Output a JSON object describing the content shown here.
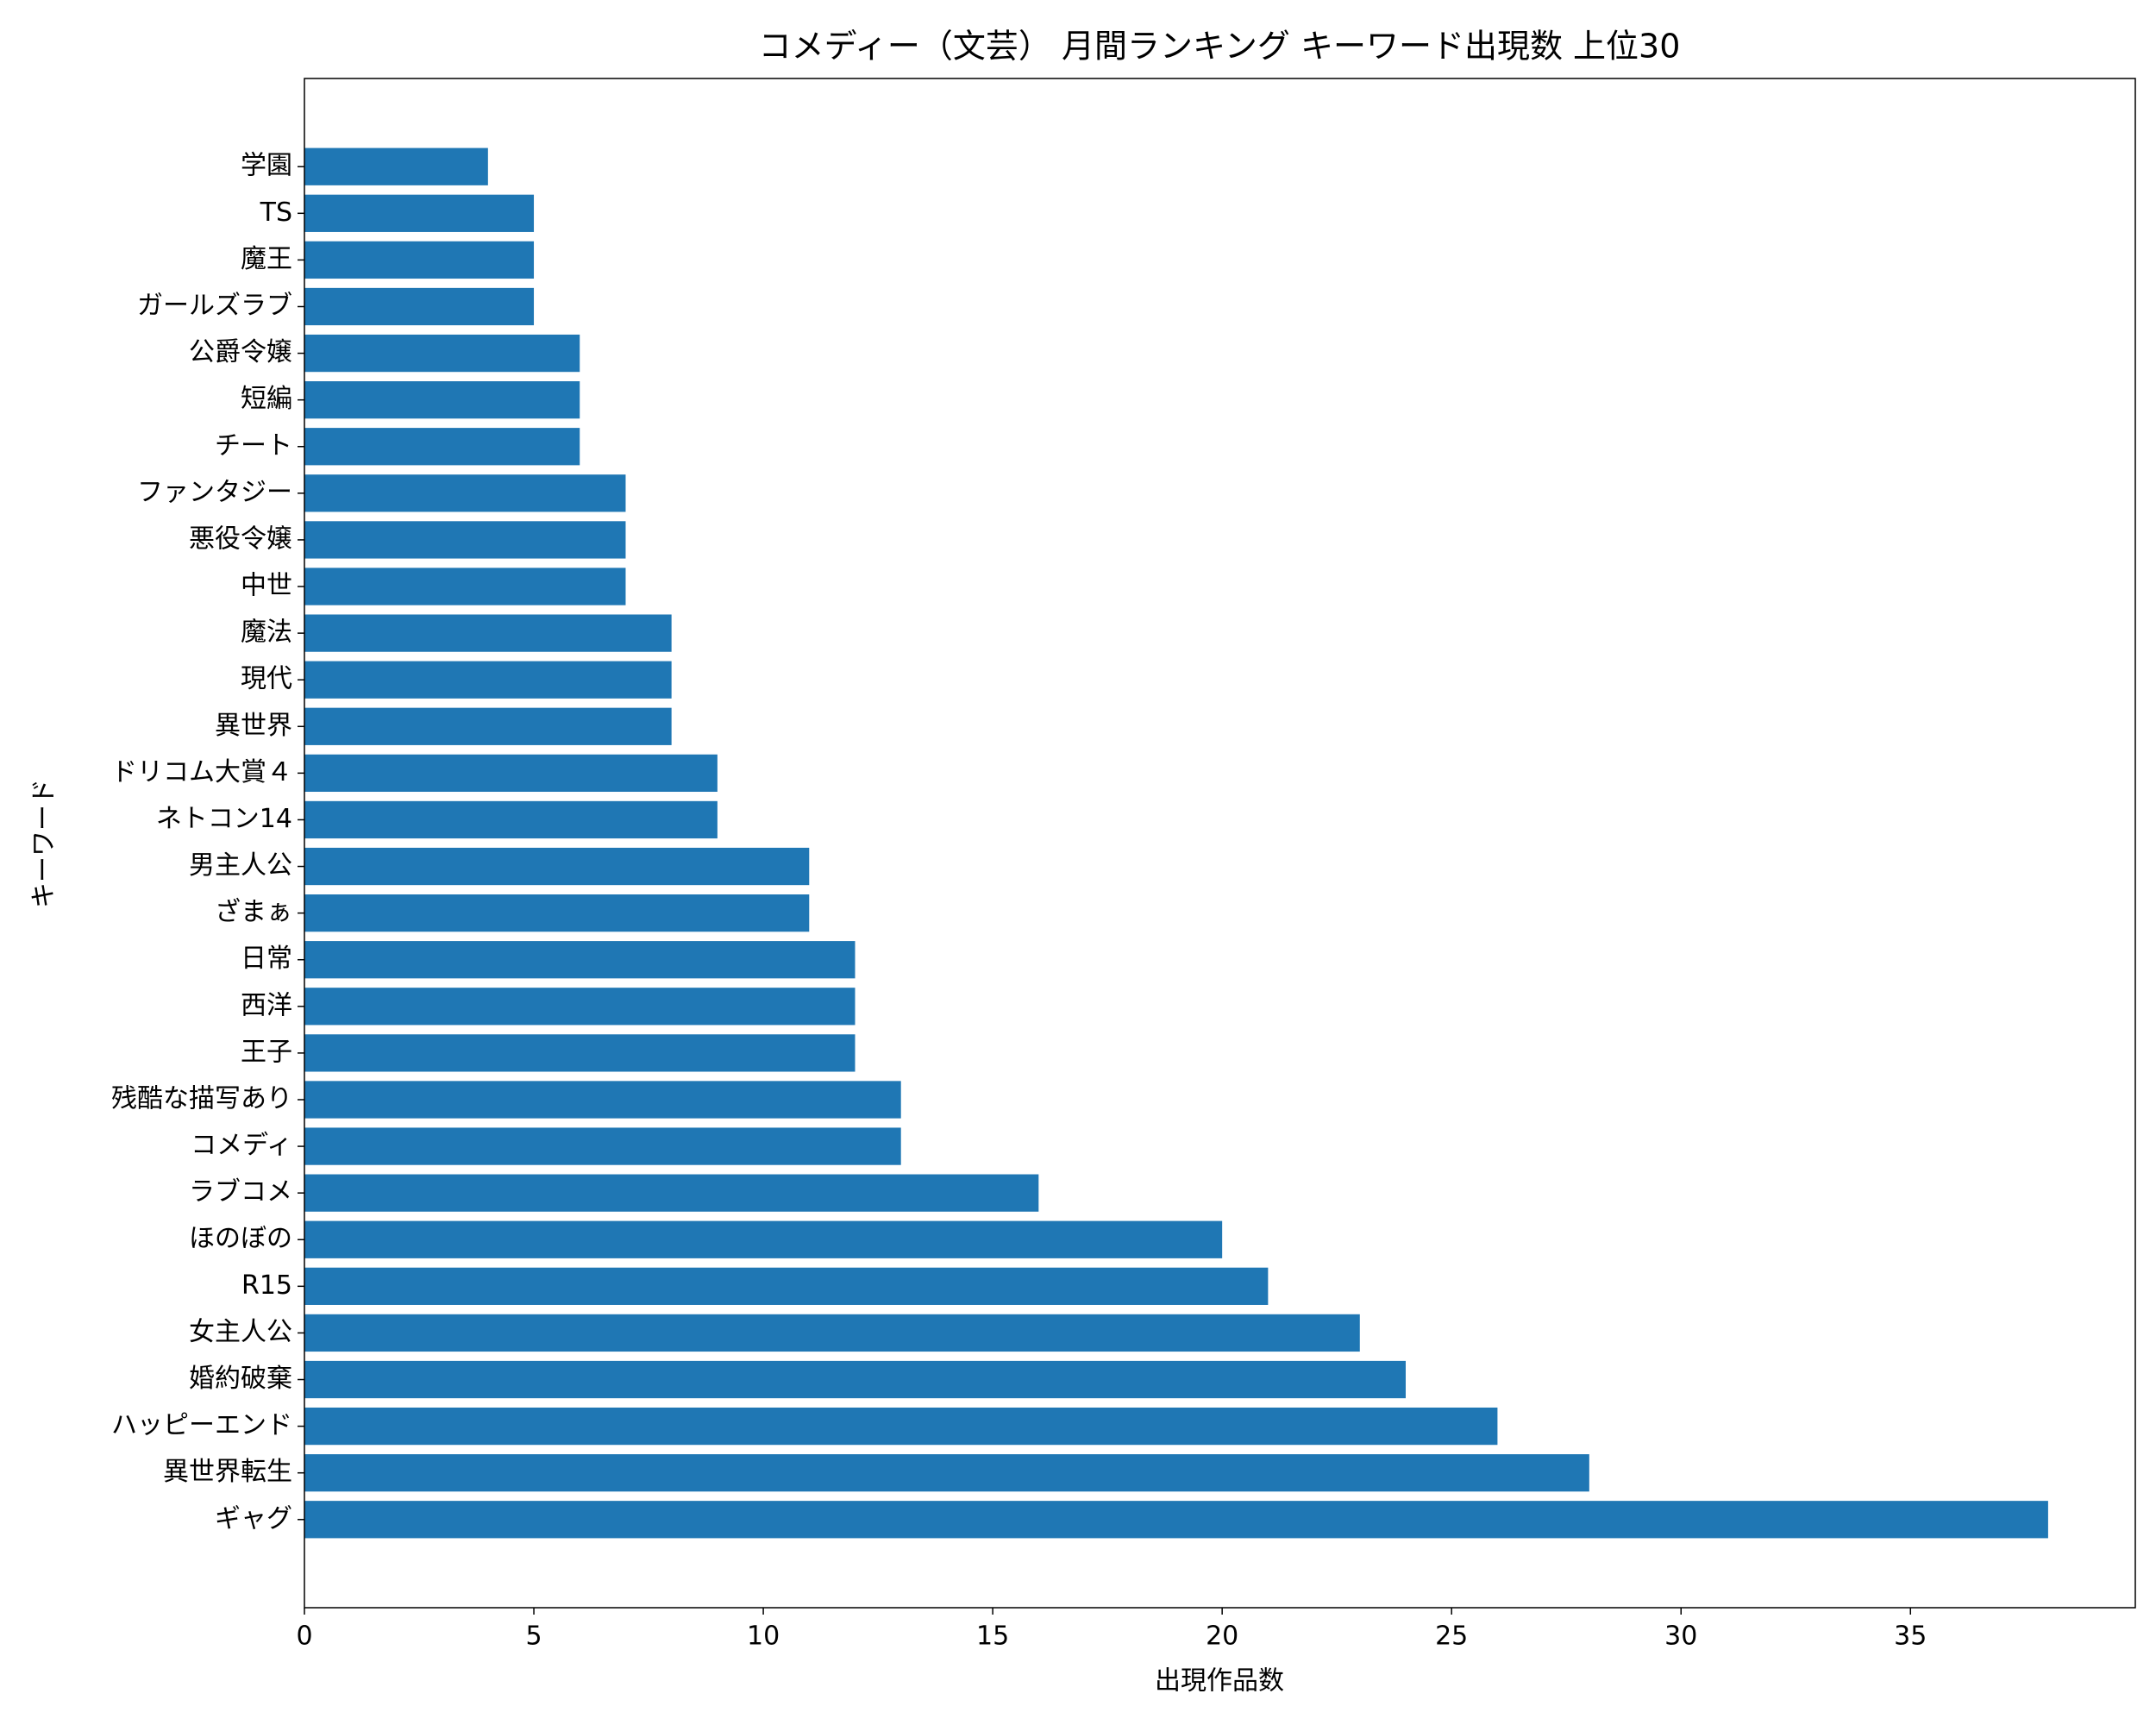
{
  "chart_data": {
    "type": "barh",
    "title": "コメディー（文芸） 月間ランキング キーワード出現数 上位30",
    "xlabel": "出現作品数",
    "ylabel": "キーワード",
    "categories": [
      "ギャグ",
      "異世界転生",
      "ハッピーエンド",
      "婚約破棄",
      "女主人公",
      "R15",
      "ほのぼの",
      "ラブコメ",
      "コメディ",
      "残酷な描写あり",
      "王子",
      "西洋",
      "日常",
      "ざまぁ",
      "男主人公",
      "ネトコン14",
      "ドリコム大賞４",
      "異世界",
      "現代",
      "魔法",
      "中世",
      "悪役令嬢",
      "ファンタジー",
      "チート",
      "短編",
      "公爵令嬢",
      "ガールズラブ",
      "魔王",
      "TS",
      "学園"
    ],
    "values": [
      38,
      28,
      26,
      24,
      23,
      21,
      20,
      16,
      13,
      13,
      12,
      12,
      12,
      11,
      11,
      9,
      9,
      8,
      8,
      8,
      7,
      7,
      7,
      6,
      6,
      6,
      5,
      5,
      5,
      4
    ],
    "color": "#1f77b4",
    "xlim": [
      0,
      39.9
    ],
    "xticks": [
      0,
      5,
      10,
      15,
      20,
      25,
      30,
      35
    ],
    "grid": false
  }
}
